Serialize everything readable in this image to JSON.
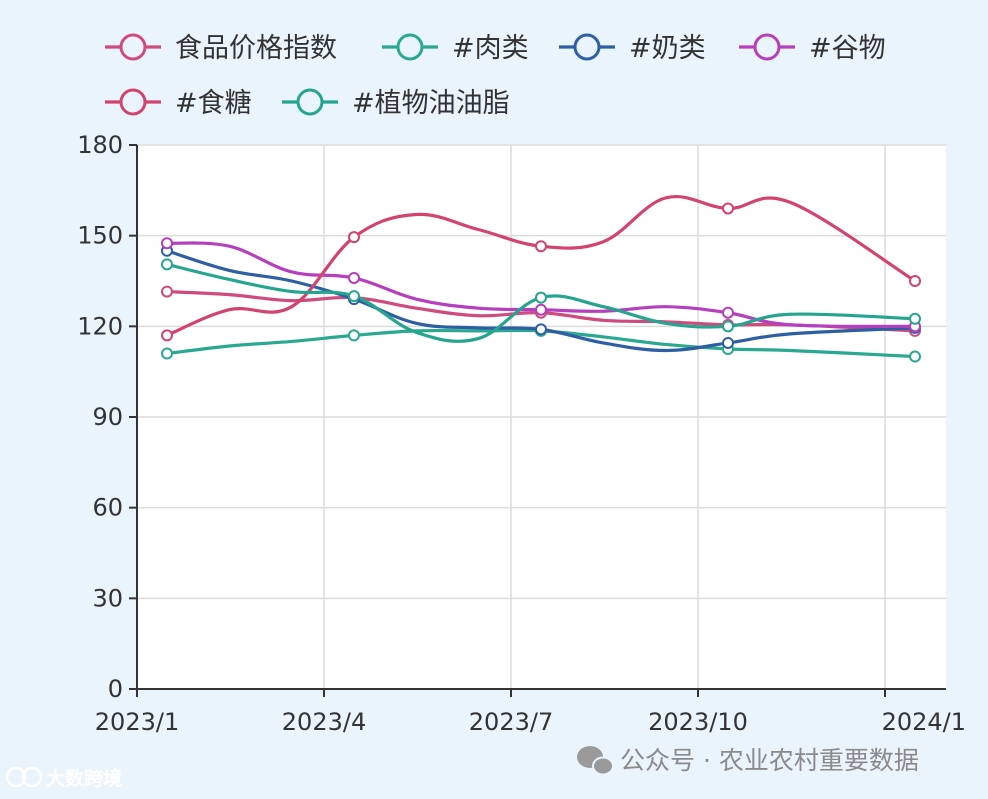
{
  "chart_data": {
    "type": "line",
    "title": "",
    "xlabel": "",
    "ylabel": "",
    "x": [
      "2023/1",
      "2023/2",
      "2023/3",
      "2023/4",
      "2023/5",
      "2023/6",
      "2023/7",
      "2023/8",
      "2023/9",
      "2023/10",
      "2023/11",
      "2024/1"
    ],
    "x_ticks": [
      "2023/1",
      "2023/4",
      "2023/7",
      "2023/10",
      "2024/1"
    ],
    "ylim": [
      0,
      180
    ],
    "y_ticks": [
      0,
      30,
      60,
      90,
      120,
      150,
      180
    ],
    "grid": true,
    "legend_position": "top",
    "markers_at": [
      "2023/1",
      "2023/4",
      "2023/7",
      "2023/10",
      "2024/1"
    ],
    "series": [
      {
        "name": "食品价格指数",
        "color": "#cf4b7d",
        "values": [
          131.5,
          130.5,
          128.5,
          129.5,
          126,
          123.5,
          124.5,
          122,
          121.5,
          120.5,
          120.5,
          118.5
        ]
      },
      {
        "name": "#肉类",
        "color": "#2aa890",
        "values": [
          111,
          113.5,
          115,
          117,
          118.5,
          118.5,
          118.5,
          116.5,
          114,
          112.5,
          112,
          110
        ]
      },
      {
        "name": "#奶类",
        "color": "#2e5fa3",
        "values": [
          145,
          138.5,
          135,
          129,
          121,
          119.5,
          119,
          114.5,
          112,
          114.5,
          117.5,
          119.5
        ]
      },
      {
        "name": "#谷物",
        "color": "#b63fbe",
        "values": [
          147.5,
          146.5,
          138,
          136,
          129,
          126,
          125.5,
          125,
          126.5,
          124.5,
          120.5,
          120
        ]
      },
      {
        "name": "#食糖",
        "color": "#d2436e",
        "values": [
          117,
          125.5,
          126.5,
          149.5,
          157,
          152,
          146.5,
          148,
          162.5,
          159,
          161,
          135
        ]
      },
      {
        "name": "#植物油油脂",
        "color": "#25a58f",
        "values": [
          140.5,
          135.5,
          131.5,
          130,
          118,
          116,
          129.5,
          126.5,
          121,
          120,
          124,
          122.5
        ]
      }
    ]
  },
  "watermark": {
    "wechat_label": "公众号 · 农业农村重要数据",
    "brand_label": "大数跨境"
  }
}
